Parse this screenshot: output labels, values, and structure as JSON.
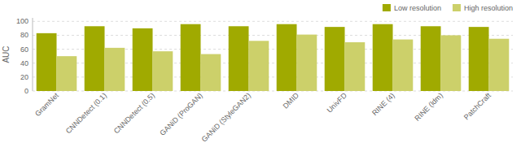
{
  "chart_data": {
    "type": "bar",
    "categories": [
      "GramNet",
      "CNNDetect (0.1)",
      "CNNDetect (0.5)",
      "GANiD (ProGAN)",
      "GANiD (StyleGAN2)",
      "DMID",
      "UnivFD",
      "RINE (4)",
      "RINE (ldm)",
      "PatchCraft"
    ],
    "series": [
      {
        "name": "Low resolution",
        "color": "#a0aa00",
        "values": [
          83,
          93,
          90,
          96,
          93,
          96,
          92,
          96,
          93,
          92
        ]
      },
      {
        "name": "High resolution",
        "color": "#ccd06a",
        "values": [
          50,
          62,
          57,
          53,
          72,
          81,
          70,
          74,
          80,
          75
        ]
      }
    ],
    "ylabel": "AUC",
    "ylim": [
      0,
      105
    ],
    "yticks": [
      0,
      20,
      40,
      60,
      80,
      100
    ],
    "grid": true,
    "legend": "upper right"
  }
}
